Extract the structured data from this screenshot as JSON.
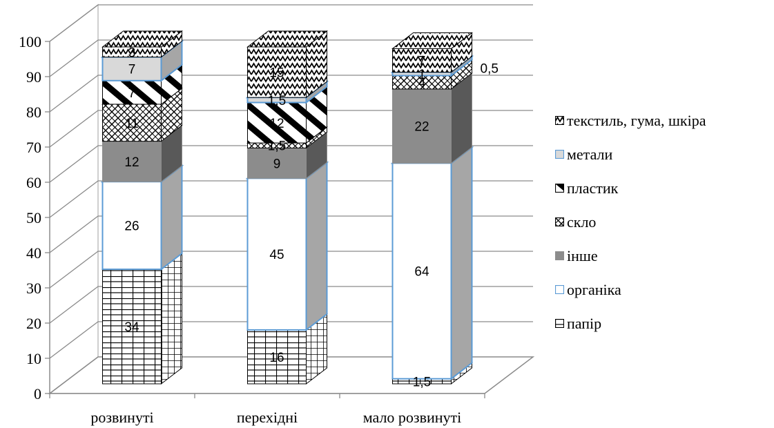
{
  "chart_data": {
    "type": "bar",
    "stacked": true,
    "three_d": true,
    "categories": [
      "розвинуті",
      "перехідні",
      "мало розвинуті"
    ],
    "y_ticks": [
      "0",
      "10",
      "20",
      "30",
      "40",
      "50",
      "60",
      "70",
      "80",
      "90",
      "100"
    ],
    "ylim": [
      0,
      100
    ],
    "grid": true,
    "legend_position": "right",
    "series": [
      {
        "name": "папір",
        "values": [
          34,
          16,
          1.5
        ],
        "labels": [
          "34",
          "16",
          "1,5"
        ],
        "pattern": "grid",
        "color": "#000000"
      },
      {
        "name": "органіка",
        "values": [
          26,
          45,
          64
        ],
        "labels": [
          "26",
          "45",
          "64"
        ],
        "pattern": "solid",
        "color": "#ffffff"
      },
      {
        "name": "інше",
        "values": [
          12,
          9,
          22
        ],
        "labels": [
          "12",
          "9",
          "22"
        ],
        "pattern": "solid",
        "color": "#8c8c8c"
      },
      {
        "name": "скло",
        "values": [
          11,
          1.5,
          4
        ],
        "labels": [
          "11",
          "1,5",
          "4"
        ],
        "pattern": "lattice",
        "color": "#000000"
      },
      {
        "name": "пластик",
        "values": [
          7,
          12,
          0
        ],
        "labels": [
          "7",
          "12",
          ""
        ],
        "pattern": "diagonal",
        "color": "#000000"
      },
      {
        "name": "метали",
        "values": [
          7,
          1.5,
          1
        ],
        "labels": [
          "7",
          "1,5",
          "1"
        ],
        "pattern": "solid",
        "color": "#d9d9d9"
      },
      {
        "name": "текстиль, гума, шкіра",
        "values": [
          3,
          15,
          7
        ],
        "labels": [
          "3",
          "15",
          "7"
        ],
        "pattern": "zigzag",
        "color": "#000000"
      }
    ],
    "annotations": [
      {
        "text": "0,5",
        "category": "мало розвинуті"
      }
    ]
  },
  "legend_order": [
    6,
    5,
    4,
    3,
    2,
    1,
    0
  ]
}
